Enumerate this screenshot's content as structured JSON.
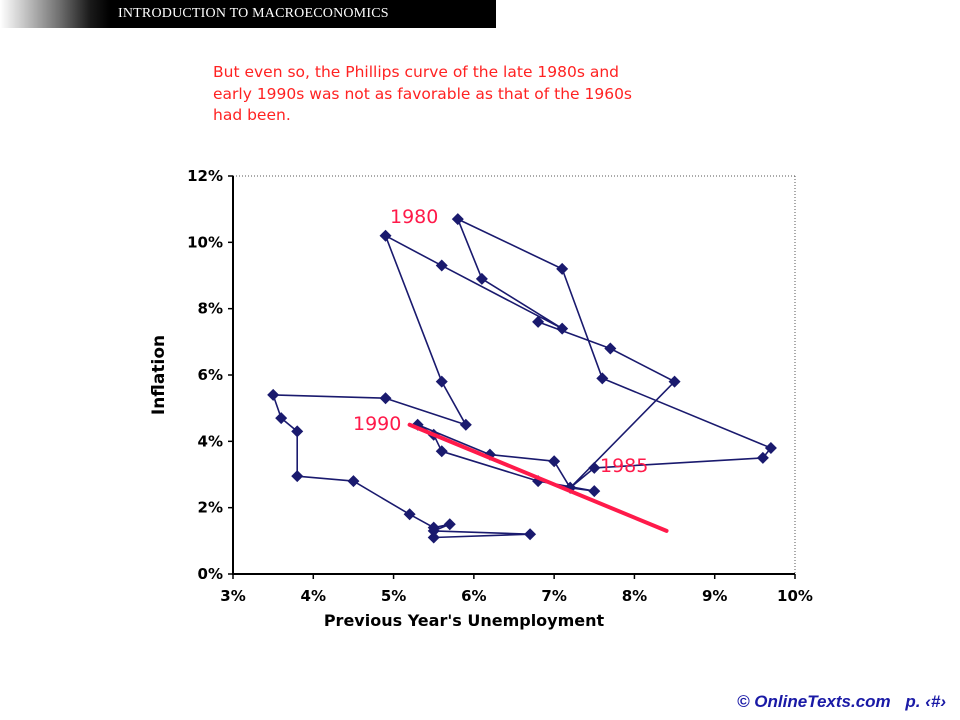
{
  "header": {
    "title": "INTRODUCTION TO MACROECONOMICS"
  },
  "note": {
    "lines": [
      "But even so, the Phillips curve of the late 1980s and",
      "early 1990s was not as favorable as that of the 1960s",
      "had been."
    ]
  },
  "colors": {
    "series": "#1a1a6e",
    "trend": "#ff1a4a",
    "note": "#ff2222",
    "footer": "#1a1aa6"
  },
  "chart_data": {
    "type": "scatter",
    "title": "",
    "xlabel": "Previous Year's Unemployment",
    "ylabel": "Inflation",
    "xlim": [
      3,
      10
    ],
    "ylim": [
      0,
      12
    ],
    "x_ticks": [
      "3%",
      "4%",
      "5%",
      "6%",
      "7%",
      "8%",
      "9%",
      "10%"
    ],
    "y_ticks": [
      "0%",
      "2%",
      "4%",
      "6%",
      "8%",
      "10%",
      "12%"
    ],
    "grid": false,
    "series": [
      {
        "points": [
          [
            5.5,
            1.1
          ],
          [
            6.7,
            1.2
          ],
          [
            5.5,
            1.3
          ],
          [
            5.7,
            1.5
          ],
          [
            5.5,
            1.4
          ],
          [
            5.2,
            1.8
          ],
          [
            4.5,
            2.8
          ],
          [
            3.8,
            2.95
          ],
          [
            3.8,
            4.3
          ],
          [
            3.6,
            4.7
          ],
          [
            3.5,
            5.4
          ],
          [
            4.9,
            5.3
          ],
          [
            5.9,
            4.5
          ],
          [
            5.6,
            5.8
          ],
          [
            4.9,
            10.2
          ],
          [
            5.6,
            9.3
          ],
          [
            7.1,
            7.4
          ],
          [
            6.1,
            8.9
          ],
          [
            5.8,
            10.7
          ],
          [
            7.1,
            9.2
          ],
          [
            7.6,
            5.9
          ],
          [
            9.7,
            3.8
          ],
          [
            9.6,
            3.5
          ],
          [
            7.5,
            3.2
          ],
          [
            7.2,
            2.6
          ],
          [
            7.0,
            3.4
          ],
          [
            6.2,
            3.6
          ],
          [
            5.3,
            4.5
          ],
          [
            5.5,
            4.2
          ],
          [
            5.6,
            3.7
          ],
          [
            6.8,
            2.8
          ],
          [
            7.5,
            2.5
          ],
          [
            7.2,
            2.6
          ],
          [
            8.5,
            5.8
          ],
          [
            7.7,
            6.8
          ],
          [
            6.8,
            7.6
          ]
        ]
      },
      {
        "points": [
          [
            5.2,
            4.5
          ],
          [
            8.4,
            1.3
          ]
        ]
      }
    ],
    "annotations": [
      {
        "text": "1980",
        "x": 5.8,
        "y": 10.7
      },
      {
        "text": "1990",
        "x": 5.2,
        "y": 4.5
      },
      {
        "text": "1985",
        "x": 7.6,
        "y": 3.3
      }
    ]
  },
  "footer": {
    "copyright": "© OnlineTexts.com",
    "page": "p. ‹#›"
  }
}
